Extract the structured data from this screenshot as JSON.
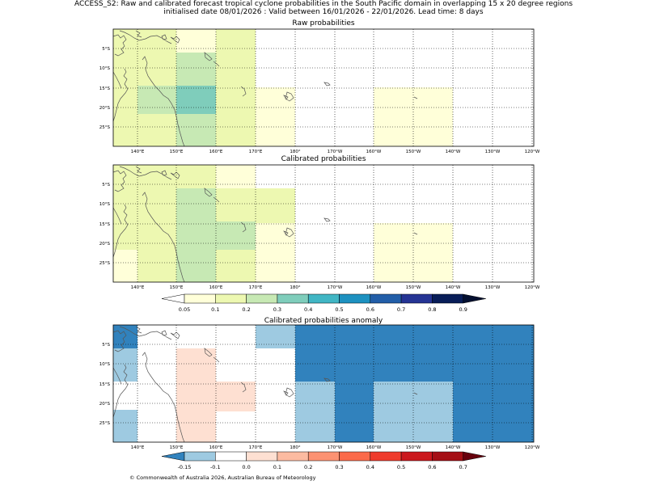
{
  "figure": {
    "title_line1": "ACCESS_S2: Raw and calibrated forecast tropical cyclone probabilities in the South Pacific domain in overlapping 15 x 20 degree regions",
    "title_line2": "initialised date 08/01/2026 :  Valid between 16/01/2026 - 22/01/2026. Lead time: 8 days",
    "footer": "© Commonwealth of Australia 2026, Australian Bureau of Meteorology"
  },
  "panels": [
    {
      "id": "raw",
      "title": "Raw probabilities"
    },
    {
      "id": "calibrated",
      "title": "Calibrated probabilities"
    },
    {
      "id": "anomaly",
      "title": "Calibrated probabilities anomaly"
    }
  ],
  "map": {
    "lon_range": [
      134,
      240
    ],
    "lat_range": [
      -29.5,
      0
    ],
    "lon_ticks": [
      "140°E",
      "150°E",
      "160°E",
      "170°E",
      "180°",
      "170°W",
      "160°W",
      "150°W",
      "140°W",
      "130°W",
      "120°W"
    ],
    "lat_ticks": [
      "5°S",
      "10°S",
      "15°S",
      "20°S",
      "25°S"
    ],
    "gridlines": true
  },
  "prob_colorbar": {
    "labels": [
      "0.05",
      "0.1",
      "0.2",
      "0.3",
      "0.4",
      "0.5",
      "0.6",
      "0.7",
      "0.8",
      "0.9"
    ],
    "colors": [
      "#ffffff",
      "#ffffd9",
      "#edf8b1",
      "#c7e9b4",
      "#7fcdbb",
      "#41b6c4",
      "#1d91c0",
      "#225ea8",
      "#253494",
      "#081d58",
      "#041030"
    ]
  },
  "anom_colorbar": {
    "labels": [
      "-0.15",
      "-0.1",
      "0.0",
      "0.1",
      "0.2",
      "0.3",
      "0.4",
      "0.5",
      "0.6",
      "0.7"
    ],
    "colors": [
      "#3182bd",
      "#9ecae1",
      "#ffffff",
      "#fee0d2",
      "#fcbba1",
      "#fc9272",
      "#fb6a4a",
      "#ef3b2c",
      "#cb181d",
      "#a50f15",
      "#67000d"
    ]
  }
}
